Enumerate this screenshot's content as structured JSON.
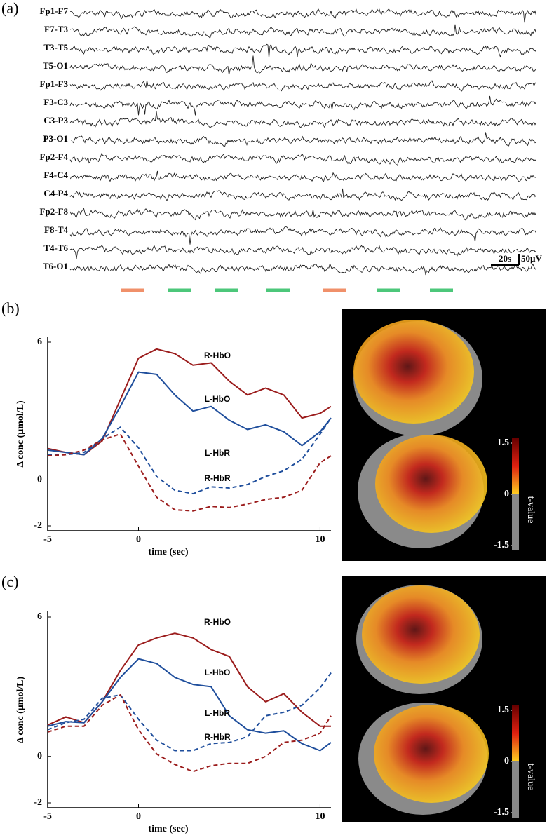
{
  "eeg": {
    "label": "(a)",
    "channels": [
      "Fp1-F7",
      "F7-T3",
      "T3-T5",
      "T5-O1",
      "Fp1-F3",
      "F3-C3",
      "C3-P3",
      "P3-O1",
      "Fp2-F4",
      "F4-C4",
      "C4-P4",
      "Fp2-F8",
      "F8-T4",
      "T4-T6",
      "T6-O1"
    ],
    "scale_time": "20s",
    "scale_amp": "50µV"
  },
  "chart_data": [
    {
      "type": "line",
      "panel_label": "(b)",
      "xlabel": "time (sec)",
      "ylabel": "Δ conc (μmol/L)",
      "x": [
        -5,
        -4,
        -3,
        -2,
        -1,
        0,
        1,
        2,
        3,
        4,
        5,
        6,
        7,
        8,
        9,
        10,
        10.6
      ],
      "xlim": [
        -5,
        10.6
      ],
      "xticks": [
        -5,
        0,
        10
      ],
      "ylim": [
        -2,
        6
      ],
      "yticks": [
        -2,
        0,
        6
      ],
      "series": [
        {
          "name": "R-HbO",
          "color": "#9b1c1c",
          "dashed": false,
          "values": [
            1.37,
            1.2,
            1.1,
            1.7,
            3.5,
            5.3,
            5.7,
            5.5,
            5.0,
            5.1,
            4.3,
            3.7,
            4.0,
            3.7,
            2.7,
            2.9,
            3.2
          ]
        },
        {
          "name": "L-HbO",
          "color": "#1f4e9c",
          "dashed": false,
          "values": [
            1.3,
            1.2,
            1.1,
            1.8,
            3.2,
            4.7,
            4.6,
            3.7,
            3.0,
            3.2,
            2.6,
            2.2,
            2.4,
            2.1,
            1.5,
            2.1,
            2.7
          ]
        },
        {
          "name": "L-HbR",
          "color": "#1f4e9c",
          "dashed": true,
          "values": [
            1.1,
            1.1,
            1.2,
            1.8,
            2.3,
            1.4,
            0.15,
            -0.45,
            -0.6,
            -0.3,
            -0.35,
            -0.2,
            0.15,
            0.4,
            0.9,
            2.0,
            2.7
          ]
        },
        {
          "name": "R-HbR",
          "color": "#9b1c1c",
          "dashed": true,
          "values": [
            1.05,
            1.1,
            1.3,
            1.75,
            2.0,
            0.6,
            -0.75,
            -1.3,
            -1.35,
            -1.15,
            -1.2,
            -1.05,
            -0.85,
            -0.75,
            -0.45,
            0.75,
            1.05
          ]
        }
      ],
      "colorbar": {
        "lim": [
          -1.5,
          1.5
        ],
        "ticks": [
          1.5,
          0,
          -1.5
        ],
        "label": "t-value"
      }
    },
    {
      "type": "line",
      "panel_label": "(c)",
      "xlabel": "time (sec)",
      "ylabel": "Δ conc (μmol/L)",
      "x": [
        -5,
        -4,
        -3,
        -2,
        -1,
        0,
        1,
        2,
        3,
        4,
        5,
        6,
        7,
        8,
        9,
        10,
        10.6
      ],
      "xlim": [
        -5,
        10.6
      ],
      "xticks": [
        -5,
        0,
        10
      ],
      "ylim": [
        -2,
        6
      ],
      "yticks": [
        -2,
        0,
        6
      ],
      "series": [
        {
          "name": "R-HbO",
          "color": "#9b1c1c",
          "dashed": false,
          "values": [
            1.35,
            1.7,
            1.45,
            2.35,
            3.7,
            4.8,
            5.1,
            5.3,
            5.1,
            4.6,
            4.3,
            3.0,
            2.35,
            2.7,
            1.9,
            1.3,
            1.3
          ]
        },
        {
          "name": "L-HbO",
          "color": "#1f4e9c",
          "dashed": false,
          "values": [
            1.3,
            1.5,
            1.45,
            2.35,
            3.4,
            4.2,
            4.0,
            3.4,
            3.1,
            3.0,
            1.75,
            1.15,
            1.0,
            1.1,
            0.55,
            0.25,
            0.6
          ]
        },
        {
          "name": "L-HbR",
          "color": "#1f4e9c",
          "dashed": true,
          "values": [
            1.15,
            1.45,
            1.6,
            2.5,
            2.65,
            1.6,
            0.7,
            0.25,
            0.25,
            0.55,
            0.6,
            0.85,
            1.75,
            1.9,
            2.2,
            2.95,
            3.6
          ]
        },
        {
          "name": "R-HbR",
          "color": "#9b1c1c",
          "dashed": true,
          "values": [
            1.05,
            1.3,
            1.3,
            2.2,
            2.65,
            1.15,
            0.1,
            -0.35,
            -0.65,
            -0.4,
            -0.3,
            -0.3,
            0.0,
            0.6,
            0.7,
            1.0,
            1.75
          ]
        }
      ],
      "colorbar": {
        "lim": [
          -1.5,
          1.5
        ],
        "ticks": [
          1.5,
          0,
          -1.5
        ],
        "label": "t-value"
      }
    }
  ]
}
